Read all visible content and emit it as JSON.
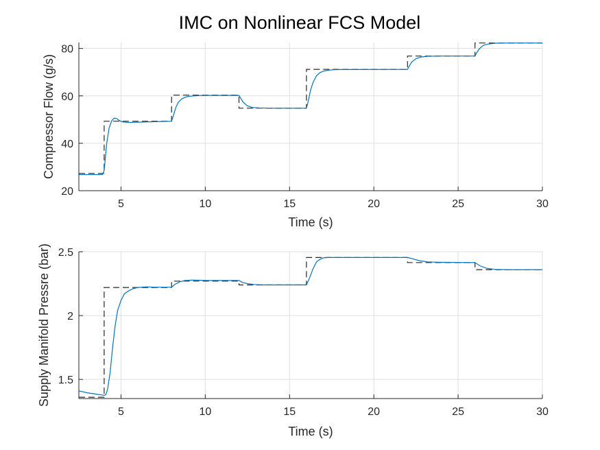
{
  "title": "IMC on Nonlinear FCS Model",
  "colors": {
    "response": "#0072BD",
    "reference": "#262626",
    "grid": "#dfdfdf",
    "axis": "#262626"
  },
  "chart_data": [
    {
      "type": "line",
      "xlabel": "Time (s)",
      "ylabel": "Compressor Flow (g/s)",
      "xlim": [
        2.5,
        30
      ],
      "ylim": [
        20,
        82.5
      ],
      "xticks": [
        5,
        10,
        15,
        20,
        25,
        30
      ],
      "yticks": [
        20,
        40,
        60,
        80
      ],
      "grid": true,
      "series": [
        {
          "style": "dashed",
          "color": "#262626",
          "x": [
            2.5,
            4,
            4,
            8,
            8,
            12,
            12,
            16,
            16,
            22,
            22,
            26,
            26,
            30
          ],
          "y": [
            27.3,
            27.3,
            49.3,
            49.3,
            60.3,
            60.3,
            54.8,
            54.8,
            71.2,
            71.2,
            76.8,
            76.8,
            82.3,
            82.3
          ]
        },
        {
          "style": "solid",
          "color": "#0072BD",
          "x": [
            2.5,
            3.9,
            4.0,
            4.15,
            4.3,
            4.45,
            4.6,
            4.75,
            4.9,
            5.1,
            5.5,
            6.0,
            7.0,
            8.0,
            8.1,
            8.25,
            8.4,
            8.6,
            8.8,
            9.0,
            9.3,
            9.6,
            10.0,
            12.0,
            12.1,
            12.25,
            12.5,
            12.8,
            13.2,
            14.0,
            16.0,
            16.1,
            16.25,
            16.4,
            16.6,
            16.8,
            17.0,
            17.3,
            17.6,
            18.0,
            22.0,
            22.1,
            22.25,
            22.5,
            22.8,
            23.2,
            24.0,
            26.0,
            26.1,
            26.25,
            26.5,
            26.8,
            27.2,
            28.0,
            30.0
          ],
          "y": [
            26.8,
            26.8,
            28.5,
            40.0,
            46.5,
            49.5,
            50.6,
            50.4,
            49.6,
            49.0,
            48.8,
            48.9,
            49.1,
            49.3,
            51.5,
            55.0,
            57.3,
            58.7,
            59.4,
            59.8,
            60.0,
            60.1,
            60.2,
            60.2,
            59.0,
            57.3,
            55.8,
            55.1,
            54.9,
            54.8,
            54.8,
            57.5,
            62.5,
            65.8,
            68.5,
            69.8,
            70.4,
            70.8,
            71.0,
            71.1,
            71.2,
            72.5,
            74.3,
            75.7,
            76.4,
            76.7,
            76.8,
            76.8,
            78.2,
            79.8,
            81.3,
            81.9,
            82.2,
            82.3,
            82.3
          ]
        }
      ]
    },
    {
      "type": "line",
      "xlabel": "Time (s)",
      "ylabel": "Supply Manifold Pressre (bar)",
      "xlim": [
        2.5,
        30
      ],
      "ylim": [
        1.35,
        2.5
      ],
      "xticks": [
        5,
        10,
        15,
        20,
        25,
        30
      ],
      "yticks": [
        1.5,
        2,
        2.5
      ],
      "grid": true,
      "series": [
        {
          "style": "dashed",
          "color": "#262626",
          "x": [
            2.5,
            4,
            4,
            8,
            8,
            12,
            12,
            16,
            16,
            22,
            22,
            26,
            26,
            30
          ],
          "y": [
            1.36,
            1.36,
            2.22,
            2.22,
            2.27,
            2.27,
            2.24,
            2.24,
            2.455,
            2.455,
            2.415,
            2.415,
            2.36,
            2.36
          ]
        },
        {
          "style": "solid",
          "color": "#0072BD",
          "x": [
            2.5,
            3.0,
            3.5,
            4.0,
            4.1,
            4.2,
            4.35,
            4.5,
            4.65,
            4.8,
            5.0,
            5.2,
            5.4,
            5.7,
            6.0,
            6.5,
            7.0,
            8.0,
            8.2,
            8.5,
            8.8,
            9.2,
            9.6,
            10.0,
            12.0,
            12.2,
            12.5,
            12.9,
            13.5,
            14.5,
            16.0,
            16.2,
            16.4,
            16.6,
            16.8,
            17.0,
            17.3,
            17.6,
            18.0,
            22.0,
            22.3,
            22.7,
            23.2,
            24.0,
            26.0,
            26.3,
            26.7,
            27.2,
            28.0,
            30.0
          ],
          "y": [
            1.41,
            1.395,
            1.385,
            1.375,
            1.38,
            1.42,
            1.55,
            1.75,
            1.92,
            2.04,
            2.12,
            2.17,
            2.19,
            2.21,
            2.22,
            2.225,
            2.222,
            2.222,
            2.245,
            2.265,
            2.275,
            2.278,
            2.277,
            2.275,
            2.275,
            2.26,
            2.25,
            2.243,
            2.24,
            2.24,
            2.24,
            2.3,
            2.37,
            2.42,
            2.44,
            2.452,
            2.455,
            2.455,
            2.455,
            2.455,
            2.445,
            2.43,
            2.42,
            2.417,
            2.415,
            2.39,
            2.37,
            2.362,
            2.36,
            2.36
          ]
        }
      ]
    }
  ]
}
